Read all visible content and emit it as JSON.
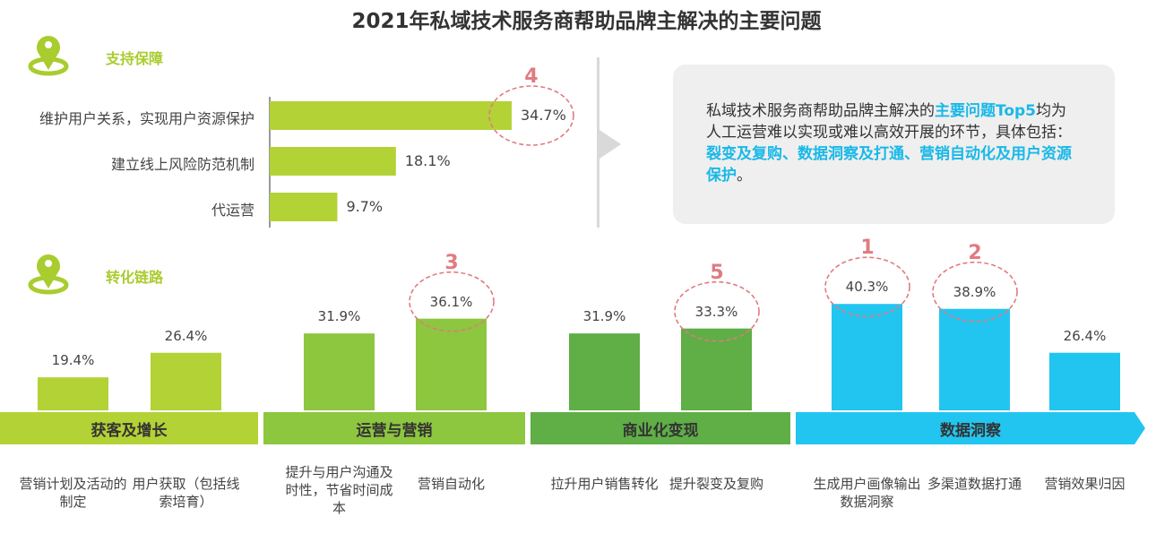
{
  "chart_data": [
    {
      "type": "bar",
      "orientation": "horizontal",
      "section": "支持保障",
      "categories": [
        "维护用户关系，实现用户资源保护",
        "建立线上风险防范机制",
        "代运营"
      ],
      "values": [
        34.7,
        18.1,
        9.7
      ],
      "unit": "%",
      "ranks": {
        "0": "4"
      }
    },
    {
      "type": "bar",
      "section_groups": [
        {
          "name": "获客及增长",
          "color": "#b3d236",
          "categories": [
            "营销计划及活动的制定",
            "用户获取（包括线索培育）"
          ],
          "values": [
            19.4,
            26.4
          ]
        },
        {
          "name": "运营与营销",
          "color": "#8dc63f",
          "categories": [
            "提升与用户沟通及时性，节省时间成本",
            "营销自动化"
          ],
          "values": [
            31.9,
            36.1
          ],
          "ranks": [
            "",
            "3"
          ]
        },
        {
          "name": "商业化变现",
          "color": "#5fae46",
          "categories": [
            "拉升用户销售转化",
            "提升裂变及复购"
          ],
          "values": [
            31.9,
            33.3
          ],
          "ranks": [
            "",
            "5"
          ]
        },
        {
          "name": "数据洞察",
          "color": "#22c5f0",
          "categories": [
            "生成用户画像输出数据洞察",
            "多渠道数据打通",
            "营销效果归因"
          ],
          "values": [
            40.3,
            38.9,
            26.4
          ],
          "ranks": [
            "1",
            "2",
            ""
          ]
        }
      ],
      "unit": "%"
    }
  ],
  "title": "2021年私域技术服务商帮助品牌主解决的主要问题",
  "section1": "支持保障",
  "section2": "转化链路",
  "panel": {
    "p1": "私域技术服务商帮助品牌主解决的",
    "h1": "主要问题Top5",
    "p2": "均为人工运营难以实现或难以高效开展的环节，具体包括：",
    "h2": "裂变及复购、数据洞察及打通、营销自动化及用户资源保护",
    "p3": "。"
  },
  "colors": {
    "top": "#b3d236",
    "rank": "#e07b80"
  }
}
